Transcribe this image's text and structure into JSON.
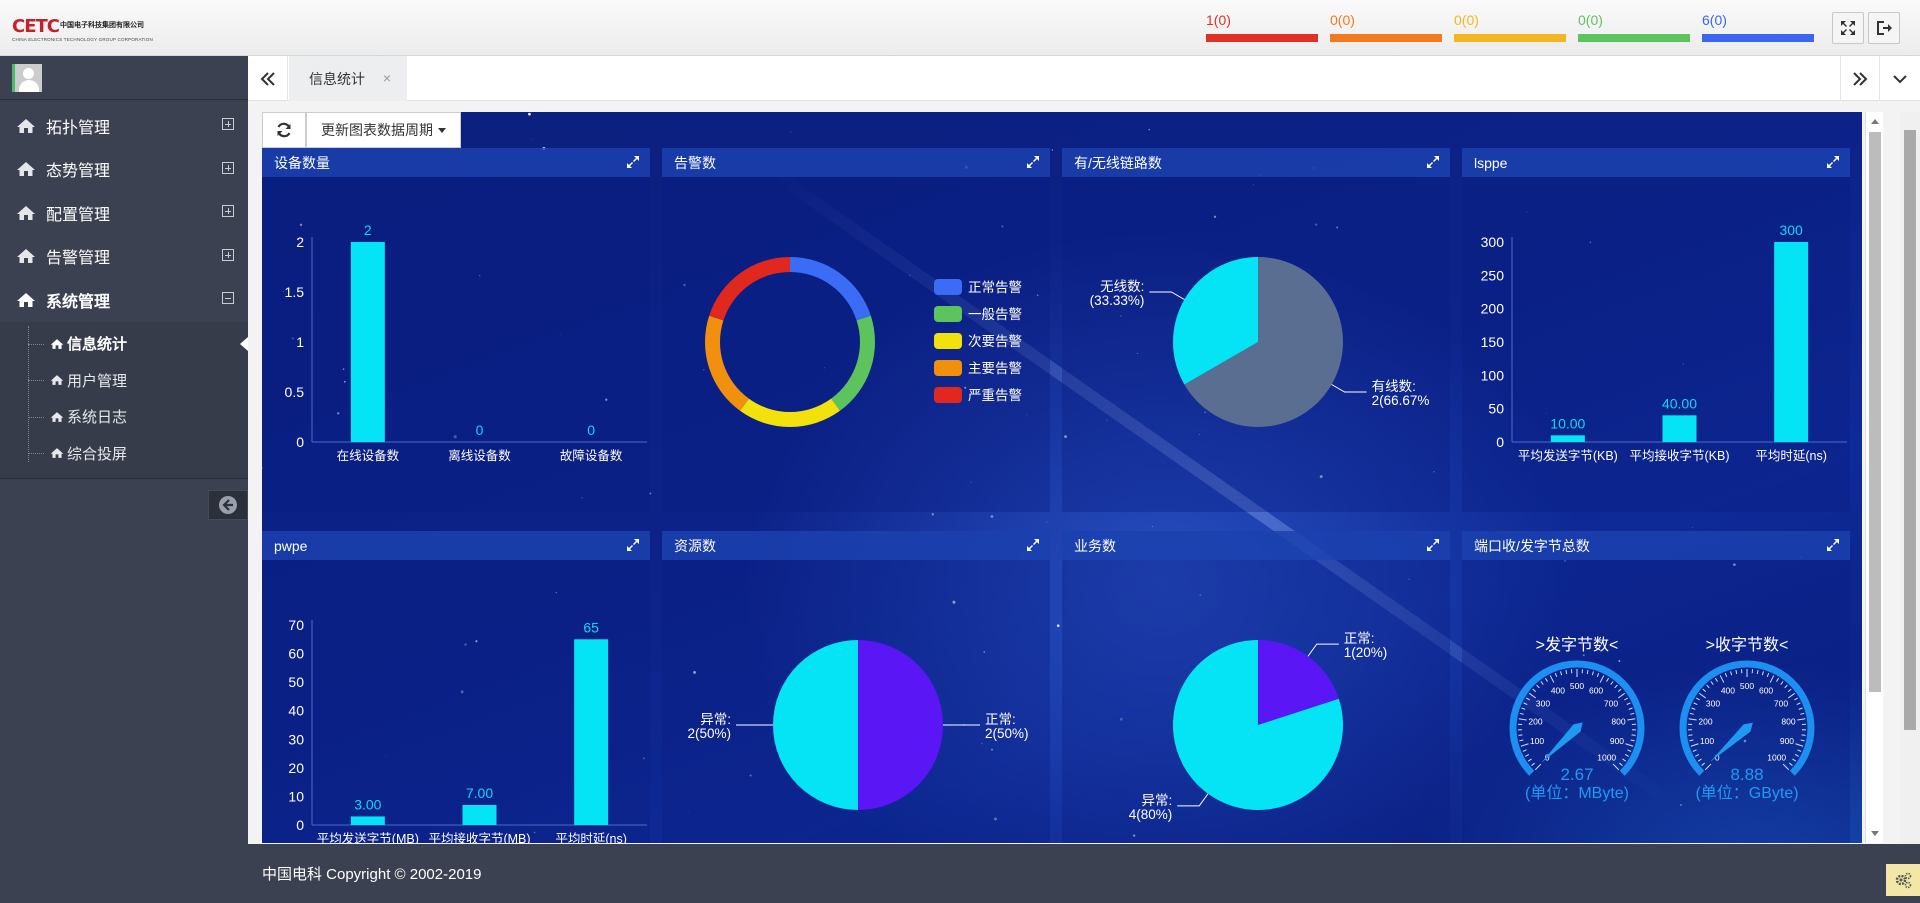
{
  "header": {
    "logo": {
      "mark": "CETC",
      "name_cn": "中国电子科技集团有限公司",
      "name_en": "CHINA ELECTRONICS TECHNOLOGY GROUP CORPORATION"
    },
    "alarms": [
      {
        "count": "1",
        "sub": "(0)",
        "color": "#e03127"
      },
      {
        "count": "0",
        "sub": "(0)",
        "color": "#f47a1f"
      },
      {
        "count": "0",
        "sub": "(0)",
        "color": "#f5b523"
      },
      {
        "count": "0",
        "sub": "(0)",
        "color": "#5cc35d"
      },
      {
        "count": "6",
        "sub": "(0)",
        "color": "#3a66f0"
      }
    ],
    "fullscreen_icon": "fullscreen-icon",
    "logout_icon": "logout-icon"
  },
  "sidebar": {
    "items": [
      {
        "label": "拓扑管理",
        "icon": "home-icon",
        "expanded": false
      },
      {
        "label": "态势管理",
        "icon": "home-icon",
        "expanded": false
      },
      {
        "label": "配置管理",
        "icon": "home-icon",
        "expanded": false
      },
      {
        "label": "告警管理",
        "icon": "home-icon",
        "expanded": false
      },
      {
        "label": "系统管理",
        "icon": "home-icon",
        "expanded": true
      }
    ],
    "subitems": [
      {
        "label": "信息统计",
        "active": true
      },
      {
        "label": "用户管理",
        "active": false
      },
      {
        "label": "系统日志",
        "active": false
      },
      {
        "label": "综合投屏",
        "active": false
      }
    ]
  },
  "tabs": {
    "active": "信息统计",
    "close": "×"
  },
  "toolbar": {
    "refresh_icon": "refresh-icon",
    "period_label": "更新图表数据周期"
  },
  "panels": {
    "devices": {
      "title": "设备数量"
    },
    "alarms": {
      "title": "告警数"
    },
    "links": {
      "title": "有/无线链路数"
    },
    "lsppe": {
      "title": "lsppe"
    },
    "pwpe": {
      "title": "pwpe"
    },
    "resources": {
      "title": "资源数"
    },
    "services": {
      "title": "业务数"
    },
    "ports": {
      "title": "端口收/发字节总数"
    }
  },
  "chart_data": [
    {
      "id": "devices",
      "type": "bar",
      "categories": [
        "在线设备数",
        "离线设备数",
        "故障设备数"
      ],
      "values": [
        2,
        0,
        0
      ],
      "value_labels": [
        "2",
        "0",
        "0"
      ],
      "yticks": [
        "0",
        "0.5",
        "1",
        "1.5",
        "2"
      ],
      "ylim": [
        0,
        2
      ]
    },
    {
      "id": "alarms",
      "type": "pie",
      "donut": true,
      "slices": [
        {
          "name": "正常告警",
          "value": 1,
          "color": "#3b6cf5"
        },
        {
          "name": "一般告警",
          "value": 1,
          "color": "#5cc35d"
        },
        {
          "name": "次要告警",
          "value": 1,
          "color": "#f2e10c"
        },
        {
          "name": "主要告警",
          "value": 1,
          "color": "#f0900e"
        },
        {
          "name": "严重告警",
          "value": 1,
          "color": "#e0281e"
        }
      ]
    },
    {
      "id": "links",
      "type": "pie",
      "slices": [
        {
          "name": "有线数:",
          "detail": "2(66.67%",
          "value": 2,
          "color": "#5a6e92"
        },
        {
          "name": "无线数:",
          "detail": "(33.33%)",
          "value": 1,
          "color": "#04e4f4"
        }
      ]
    },
    {
      "id": "lsppe",
      "type": "bar",
      "categories": [
        "平均发送字节(KB)",
        "平均接收字节(KB)",
        "平均时延(ns)"
      ],
      "values": [
        10,
        40,
        300
      ],
      "value_labels": [
        "10.00",
        "40.00",
        "300"
      ],
      "yticks": [
        "0",
        "50",
        "100",
        "150",
        "200",
        "250",
        "300"
      ],
      "ylim": [
        0,
        300
      ]
    },
    {
      "id": "pwpe",
      "type": "bar",
      "categories": [
        "平均发送字节(MB)",
        "平均接收字节(MB)",
        "平均时延(ns)"
      ],
      "values": [
        3,
        7,
        65
      ],
      "value_labels": [
        "3.00",
        "7.00",
        "65"
      ],
      "yticks": [
        "0",
        "10",
        "20",
        "30",
        "40",
        "50",
        "60",
        "70"
      ],
      "ylim": [
        0,
        70
      ]
    },
    {
      "id": "resources",
      "type": "pie",
      "slices": [
        {
          "name": "正常:",
          "detail": "2(50%)",
          "value": 2,
          "color": "#5a16f5"
        },
        {
          "name": "异常:",
          "detail": "2(50%)",
          "value": 2,
          "color": "#04e4f4"
        }
      ]
    },
    {
      "id": "services",
      "type": "pie",
      "slices": [
        {
          "name": "正常:",
          "detail": "1(20%)",
          "value": 1,
          "color": "#5a16f5"
        },
        {
          "name": "异常:",
          "detail": "4(80%)",
          "value": 4,
          "color": "#04e4f4"
        }
      ]
    },
    {
      "id": "ports",
      "type": "gauge",
      "gauges": [
        {
          "title": ">发字节数<",
          "value": 2.67,
          "value_label": "2.67",
          "unit": "(单位：MByte)"
        },
        {
          "title": ">收字节数<",
          "value": 8.88,
          "value_label": "8.88",
          "unit": "(单位：GByte)"
        }
      ],
      "scale_labels": [
        "0",
        "100",
        "200",
        "300",
        "400",
        "500",
        "600",
        "700",
        "800",
        "900",
        "1000"
      ],
      "range": [
        0,
        1000
      ]
    }
  ],
  "footer": {
    "copyright": "中国电科 Copyright © 2002-2019",
    "settings_icon": "gear-icon"
  }
}
